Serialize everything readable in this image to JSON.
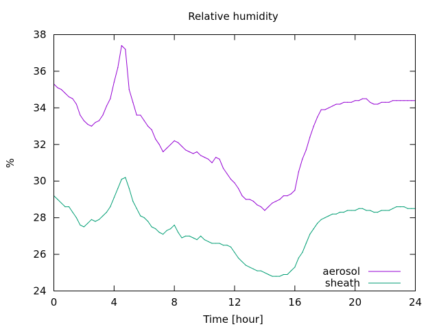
{
  "chart_data": {
    "type": "line",
    "title": "Relative humidity",
    "xlabel": "Time [hour]",
    "ylabel": "%",
    "xlim": [
      0,
      24
    ],
    "ylim": [
      24,
      38
    ],
    "xticks": [
      0,
      4,
      8,
      12,
      16,
      20,
      24
    ],
    "yticks": [
      24,
      26,
      28,
      30,
      32,
      34,
      36,
      38
    ],
    "grid": false,
    "legend_position": "bottom-right",
    "series": [
      {
        "name": "aerosol",
        "color": "#9400d3",
        "x": [
          0,
          0.25,
          0.5,
          0.75,
          1,
          1.25,
          1.5,
          1.75,
          2,
          2.25,
          2.5,
          2.75,
          3,
          3.25,
          3.5,
          3.75,
          4,
          4.25,
          4.5,
          4.75,
          5,
          5.25,
          5.5,
          5.75,
          6,
          6.25,
          6.5,
          6.75,
          7,
          7.25,
          7.5,
          7.75,
          8,
          8.25,
          8.5,
          8.75,
          9,
          9.25,
          9.5,
          9.75,
          10,
          10.25,
          10.5,
          10.75,
          11,
          11.25,
          11.5,
          11.75,
          12,
          12.25,
          12.5,
          12.75,
          13,
          13.25,
          13.5,
          13.75,
          14,
          14.25,
          14.5,
          14.75,
          15,
          15.25,
          15.5,
          15.75,
          16,
          16.25,
          16.5,
          16.75,
          17,
          17.25,
          17.5,
          17.75,
          18,
          18.25,
          18.5,
          18.75,
          19,
          19.25,
          19.5,
          19.75,
          20,
          20.25,
          20.5,
          20.75,
          21,
          21.25,
          21.5,
          21.75,
          22,
          22.25,
          22.5,
          22.75,
          23,
          23.25,
          23.5,
          23.75,
          24
        ],
        "y": [
          35.3,
          35.1,
          35.0,
          34.8,
          34.6,
          34.5,
          34.2,
          33.6,
          33.3,
          33.1,
          33.0,
          33.2,
          33.3,
          33.6,
          34.1,
          34.5,
          35.4,
          36.2,
          37.4,
          37.2,
          35.0,
          34.3,
          33.6,
          33.6,
          33.3,
          33.0,
          32.8,
          32.3,
          32.0,
          31.6,
          31.8,
          32.0,
          32.2,
          32.1,
          31.9,
          31.7,
          31.6,
          31.5,
          31.6,
          31.4,
          31.3,
          31.2,
          31.0,
          31.3,
          31.2,
          30.7,
          30.4,
          30.1,
          29.9,
          29.6,
          29.2,
          29.0,
          29.0,
          28.9,
          28.7,
          28.6,
          28.4,
          28.6,
          28.8,
          28.9,
          29.0,
          29.2,
          29.2,
          29.3,
          29.5,
          30.5,
          31.2,
          31.7,
          32.4,
          33.0,
          33.5,
          33.9,
          33.9,
          34.0,
          34.1,
          34.2,
          34.2,
          34.3,
          34.3,
          34.3,
          34.4,
          34.4,
          34.5,
          34.5,
          34.3,
          34.2,
          34.2,
          34.3,
          34.3,
          34.3,
          34.4,
          34.4,
          34.4,
          34.4,
          34.4,
          34.4,
          34.4
        ]
      },
      {
        "name": "sheath",
        "color": "#009e73",
        "x": [
          0,
          0.25,
          0.5,
          0.75,
          1,
          1.25,
          1.5,
          1.75,
          2,
          2.25,
          2.5,
          2.75,
          3,
          3.25,
          3.5,
          3.75,
          4,
          4.25,
          4.5,
          4.75,
          5,
          5.25,
          5.5,
          5.75,
          6,
          6.25,
          6.5,
          6.75,
          7,
          7.25,
          7.5,
          7.75,
          8,
          8.25,
          8.5,
          8.75,
          9,
          9.25,
          9.5,
          9.75,
          10,
          10.25,
          10.5,
          10.75,
          11,
          11.25,
          11.5,
          11.75,
          12,
          12.25,
          12.5,
          12.75,
          13,
          13.25,
          13.5,
          13.75,
          14,
          14.25,
          14.5,
          14.75,
          15,
          15.25,
          15.5,
          15.75,
          16,
          16.25,
          16.5,
          16.75,
          17,
          17.25,
          17.5,
          17.75,
          18,
          18.25,
          18.5,
          18.75,
          19,
          19.25,
          19.5,
          19.75,
          20,
          20.25,
          20.5,
          20.75,
          21,
          21.25,
          21.5,
          21.75,
          22,
          22.25,
          22.5,
          22.75,
          23,
          23.25,
          23.5,
          23.75,
          24
        ],
        "y": [
          29.2,
          29.0,
          28.8,
          28.6,
          28.6,
          28.3,
          28.0,
          27.6,
          27.5,
          27.7,
          27.9,
          27.8,
          27.9,
          28.1,
          28.3,
          28.6,
          29.1,
          29.6,
          30.1,
          30.2,
          29.6,
          28.9,
          28.5,
          28.1,
          28.0,
          27.8,
          27.5,
          27.4,
          27.2,
          27.1,
          27.3,
          27.4,
          27.6,
          27.2,
          26.9,
          27.0,
          27.0,
          26.9,
          26.8,
          27.0,
          26.8,
          26.7,
          26.6,
          26.6,
          26.6,
          26.5,
          26.5,
          26.4,
          26.1,
          25.8,
          25.6,
          25.4,
          25.3,
          25.2,
          25.1,
          25.1,
          25.0,
          24.9,
          24.8,
          24.8,
          24.8,
          24.9,
          24.9,
          25.1,
          25.3,
          25.8,
          26.1,
          26.6,
          27.1,
          27.4,
          27.7,
          27.9,
          28.0,
          28.1,
          28.2,
          28.2,
          28.3,
          28.3,
          28.4,
          28.4,
          28.4,
          28.5,
          28.5,
          28.4,
          28.4,
          28.3,
          28.3,
          28.4,
          28.4,
          28.4,
          28.5,
          28.6,
          28.6,
          28.6,
          28.5,
          28.5,
          28.5
        ]
      }
    ]
  }
}
